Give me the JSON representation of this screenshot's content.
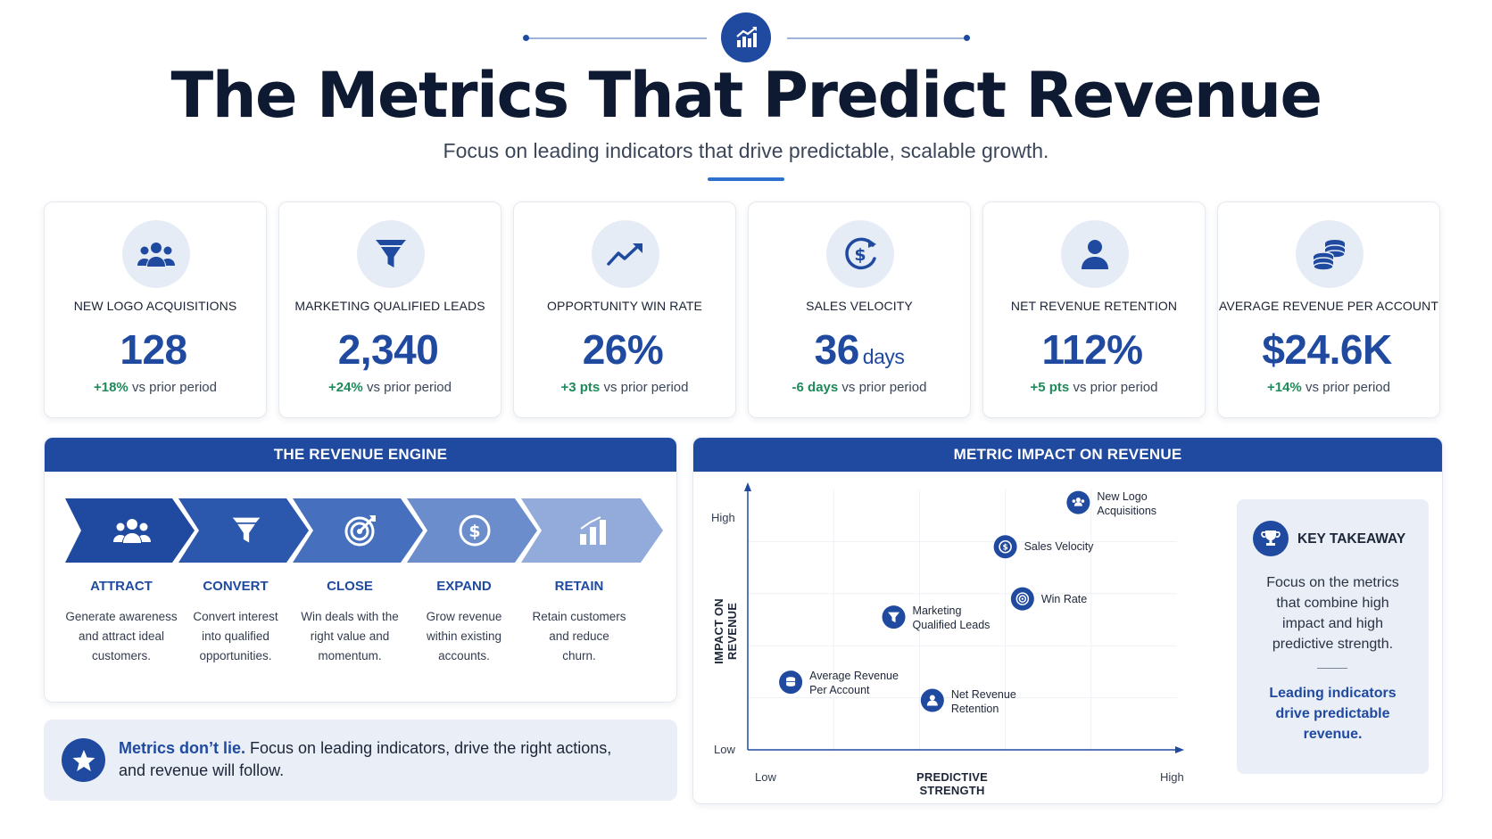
{
  "header": {
    "title": "The Metrics That Predict Revenue",
    "subtitle": "Focus on leading indicators that drive predictable, scalable growth.",
    "icon": "bar-chart-trend-icon"
  },
  "kpis": [
    {
      "label": "NEW LOGO ACQUISITIONS",
      "value": "128",
      "unit": "",
      "delta": "+18%",
      "suffix": "vs prior period",
      "icon": "users-icon"
    },
    {
      "label": "MARKETING QUALIFIED LEADS",
      "value": "2,340",
      "unit": "",
      "delta": "+24%",
      "suffix": "vs prior period",
      "icon": "funnel-icon"
    },
    {
      "label": "OPPORTUNITY WIN RATE",
      "value": "26%",
      "unit": "",
      "delta": "+3 pts",
      "suffix": "vs prior period",
      "icon": "trend-up-icon"
    },
    {
      "label": "SALES VELOCITY",
      "value": "36",
      "unit": "days",
      "delta": "-6 days",
      "suffix": "vs prior period",
      "icon": "dollar-cycle-icon"
    },
    {
      "label": "NET REVENUE RETENTION",
      "value": "112%",
      "unit": "",
      "delta": "+5 pts",
      "suffix": "vs prior period",
      "icon": "user-icon"
    },
    {
      "label": "AVERAGE REVENUE PER ACCOUNT",
      "value": "$24.6K",
      "unit": "",
      "delta": "+14%",
      "suffix": "vs prior period",
      "icon": "coins-icon"
    }
  ],
  "engine": {
    "title": "THE REVENUE ENGINE",
    "stages": [
      {
        "title": "ATTRACT",
        "desc": [
          "Generate awareness",
          "and attract ideal",
          "customers."
        ],
        "icon": "users-icon"
      },
      {
        "title": "CONVERT",
        "desc": [
          "Convert interest",
          "into qualified",
          "opportunities."
        ],
        "icon": "funnel-icon"
      },
      {
        "title": "CLOSE",
        "desc": [
          "Win deals with the",
          "right value and",
          "momentum."
        ],
        "icon": "target-icon"
      },
      {
        "title": "EXPAND",
        "desc": [
          "Grow revenue",
          "within existing",
          "accounts."
        ],
        "icon": "dollar-icon"
      },
      {
        "title": "RETAIN",
        "desc": [
          "Retain customers",
          "and reduce",
          "churn."
        ],
        "icon": "bar-chart-icon"
      }
    ]
  },
  "banner": {
    "bold": "Metrics don’t lie.",
    "text_line1": " Focus on leading indicators, drive the right actions,",
    "text_line2": "and revenue will follow.",
    "icon": "star-icon"
  },
  "impact": {
    "title": "METRIC IMPACT ON REVENUE",
    "y_axis_title": "IMPACT ON REVENUE",
    "x_axis_title": "PREDICTIVE STRENGTH",
    "y_low": "Low",
    "y_high": "High",
    "x_low": "Low",
    "x_high": "High",
    "points": [
      {
        "label": [
          "New Logo",
          "Acquisitions"
        ],
        "x": 0.77,
        "y": 0.95,
        "icon": "users-icon"
      },
      {
        "label": [
          "Sales Velocity"
        ],
        "x": 0.6,
        "y": 0.78,
        "icon": "dollar-icon"
      },
      {
        "label": [
          "Win Rate"
        ],
        "x": 0.64,
        "y": 0.58,
        "icon": "target-icon"
      },
      {
        "label": [
          "Marketing",
          "Qualified Leads"
        ],
        "x": 0.34,
        "y": 0.51,
        "icon": "funnel-icon"
      },
      {
        "label": [
          "Average Revenue",
          "Per Account"
        ],
        "x": 0.1,
        "y": 0.26,
        "icon": "coins-icon"
      },
      {
        "label": [
          "Net Revenue",
          "Retention"
        ],
        "x": 0.43,
        "y": 0.19,
        "icon": "user-icon"
      }
    ]
  },
  "takeaway": {
    "title": "KEY TAKEAWAY",
    "body": [
      "Focus on the metrics",
      "that combine high",
      "impact and high",
      "predictive strength."
    ],
    "note": [
      "Leading indicators",
      "drive predictable",
      "revenue."
    ],
    "icon": "trophy-icon"
  },
  "colors": {
    "primary": "#1f4aa0",
    "positive": "#1e8a5a",
    "panel_bg": "#e9eef7"
  }
}
